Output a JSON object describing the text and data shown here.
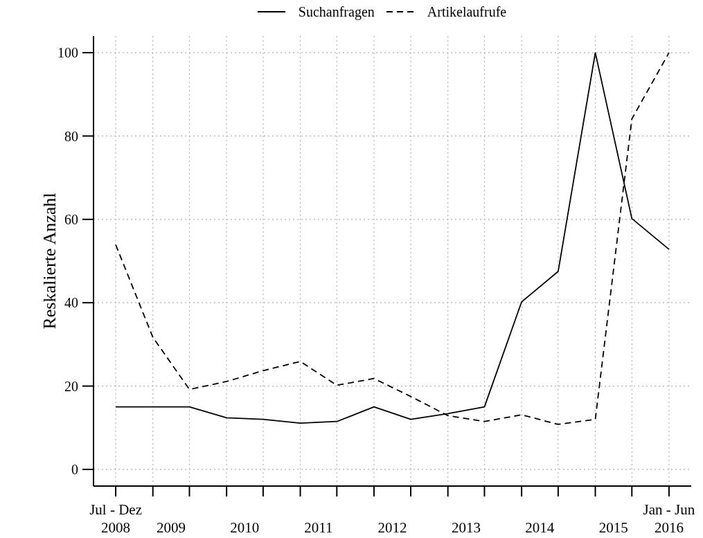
{
  "chart_data": {
    "type": "line",
    "x": [
      "2008-07",
      "2009-01",
      "2009-07",
      "2010-01",
      "2010-07",
      "2011-01",
      "2011-07",
      "2012-01",
      "2012-07",
      "2013-01",
      "2013-07",
      "2014-01",
      "2014-07",
      "2015-01",
      "2015-07",
      "2016-01"
    ],
    "series": [
      {
        "name": "Suchanfragen",
        "color": "#000000",
        "line_style": "solid",
        "values": [
          15,
          15,
          15,
          12.4,
          12,
          11.1,
          11.5,
          15,
          12,
          13.4,
          15,
          40.2,
          47.5,
          100,
          60.2,
          52.8
        ]
      },
      {
        "name": "Artikelaufrufe",
        "color": "#000000",
        "line_style": "dashed",
        "values": [
          53.9,
          31.7,
          19.2,
          21.1,
          23.7,
          25.9,
          20.2,
          21.8,
          17.5,
          12.9,
          11.5,
          13.1,
          10.8,
          12,
          84.1,
          100
        ]
      }
    ],
    "ylabel": "Reskalierte Anzahl",
    "xlim": [
      "2008-03-13",
      "2016-04-20"
    ],
    "xticks": [
      {
        "value": "2008-07",
        "label": "Jul - Dez\n2008"
      },
      {
        "value": "2009-01",
        "label": null
      },
      {
        "value": "2009-04",
        "label": "2009"
      },
      {
        "value": "2009-07",
        "label": null
      },
      {
        "value": "2010-01",
        "label": null
      },
      {
        "value": "2010-04",
        "label": "2010"
      },
      {
        "value": "2010-07",
        "label": null
      },
      {
        "value": "2011-01",
        "label": null
      },
      {
        "value": "2011-04",
        "label": "2011"
      },
      {
        "value": "2011-07",
        "label": null
      },
      {
        "value": "2012-01",
        "label": null
      },
      {
        "value": "2012-04",
        "label": "2012"
      },
      {
        "value": "2012-07",
        "label": null
      },
      {
        "value": "2013-01",
        "label": null
      },
      {
        "value": "2013-04",
        "label": "2013"
      },
      {
        "value": "2013-07",
        "label": null
      },
      {
        "value": "2014-01",
        "label": null
      },
      {
        "value": "2014-04",
        "label": "2014"
      },
      {
        "value": "2014-07",
        "label": null
      },
      {
        "value": "2015-01",
        "label": null
      },
      {
        "value": "2015-04",
        "label": "2015"
      },
      {
        "value": "2015-07",
        "label": null
      },
      {
        "value": "2016-01",
        "label": "Jan - Jun\n2016"
      }
    ],
    "ylim": [
      -4,
      104
    ],
    "yticks": [
      0,
      20,
      40,
      60,
      80,
      100
    ],
    "grid": true,
    "legend": "top"
  }
}
